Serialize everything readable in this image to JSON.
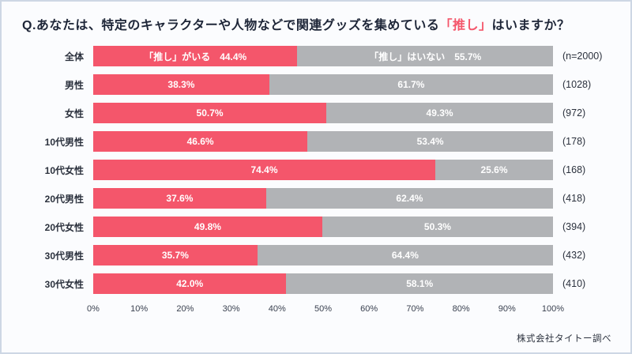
{
  "title": {
    "prefix": "Q.あなたは、特定のキャラクターや人物などで関連グッズを集めている",
    "highlight": "「推し」",
    "suffix": "はいますか？"
  },
  "footer": "株式会社タイトー調べ",
  "colors": {
    "yes": "#f4566b",
    "no": "#b1b3b6",
    "title_text": "#1e2638",
    "background": "#fbfcfe",
    "border": "#cdd7e4"
  },
  "chart_data": {
    "type": "bar",
    "orientation": "horizontal-stacked",
    "title": "Q.あなたは、特定のキャラクターや人物などで関連グッズを集めている「推し」はいますか？",
    "categories": [
      "全体",
      "男性",
      "女性",
      "10代男性",
      "10代女性",
      "20代男性",
      "20代女性",
      "30代男性",
      "30代女性"
    ],
    "counts": [
      "(n=2000)",
      "(1028)",
      "(972)",
      "(178)",
      "(168)",
      "(418)",
      "(394)",
      "(432)",
      "(410)"
    ],
    "series": [
      {
        "name": "「推し」がいる",
        "values": [
          44.4,
          38.3,
          50.7,
          46.6,
          74.4,
          37.6,
          49.8,
          35.7,
          42.0
        ]
      },
      {
        "name": "「推し」はいない",
        "values": [
          55.7,
          61.7,
          49.3,
          53.4,
          25.6,
          62.4,
          50.3,
          64.4,
          58.1
        ]
      }
    ],
    "first_row_labels": [
      "「推し」がいる　44.4%",
      "「推し」はいない　55.7%"
    ],
    "xticks": [
      "0%",
      "10%",
      "20%",
      "30%",
      "40%",
      "50%",
      "60%",
      "70%",
      "80%",
      "90%",
      "100%"
    ],
    "xlim": [
      0,
      100
    ],
    "legend_position": "none",
    "grid": false
  }
}
